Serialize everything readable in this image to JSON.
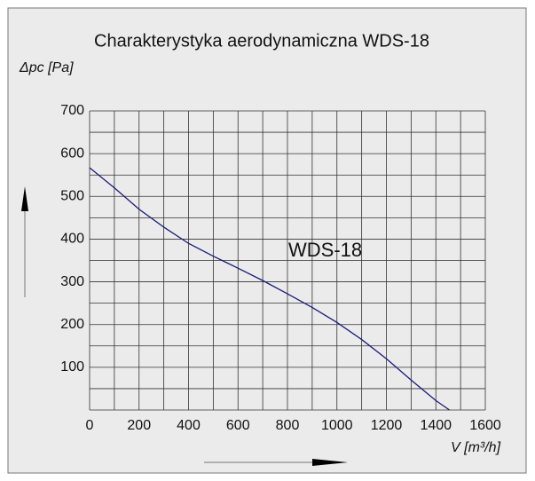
{
  "chart_data": {
    "type": "line",
    "title": "Charakterystyka aerodynamiczna  WDS-18",
    "y_label": "Δpc [Pa]",
    "x_label": "V [m³/h]",
    "annotation": "WDS-18",
    "x": [
      0,
      100,
      200,
      300,
      400,
      500,
      600,
      700,
      800,
      900,
      1000,
      1100,
      1200,
      1300,
      1400,
      1455
    ],
    "series": [
      {
        "color": "#1a1a7a",
        "values": [
          567,
          520,
          470,
          428,
          390,
          360,
          332,
          303,
          272,
          240,
          205,
          165,
          120,
          70,
          22,
          0
        ]
      }
    ],
    "xlim": [
      0,
      1600
    ],
    "ylim": [
      0,
      700
    ],
    "xticks": [
      0,
      200,
      400,
      600,
      800,
      1000,
      1200,
      1400,
      1600
    ],
    "yticks": [
      100,
      200,
      300,
      400,
      500,
      600,
      700
    ],
    "xgrid": [
      0,
      100,
      200,
      300,
      400,
      500,
      600,
      700,
      800,
      900,
      1000,
      1100,
      1200,
      1300,
      1400,
      1500,
      1600
    ],
    "ygrid": [
      0,
      50,
      100,
      150,
      200,
      250,
      300,
      350,
      400,
      450,
      500,
      550,
      600,
      650,
      700
    ],
    "grid": true
  }
}
